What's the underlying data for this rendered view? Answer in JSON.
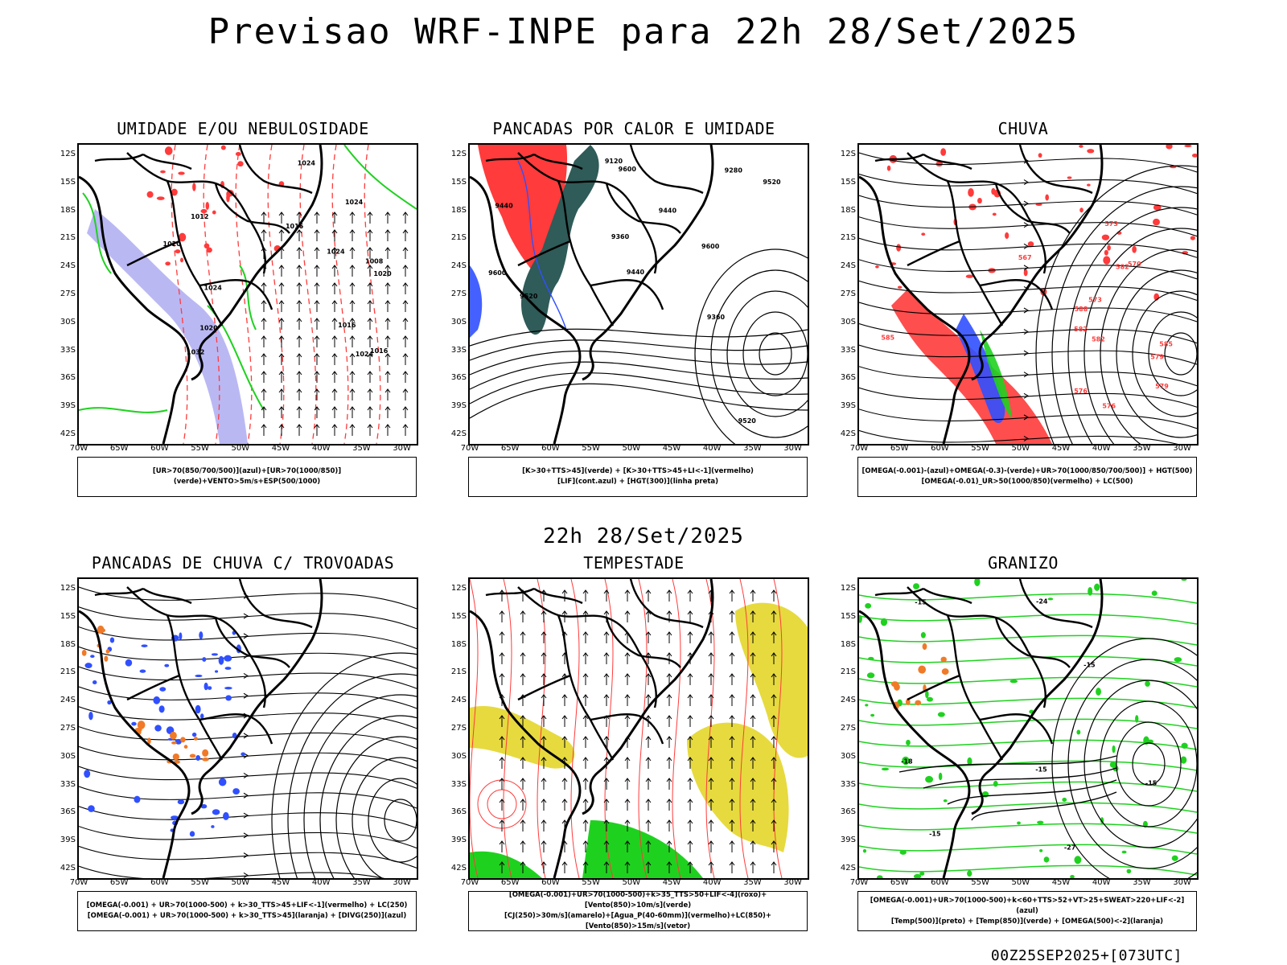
{
  "title": "Previsao WRF-INPE  para 22h 28/Set/2025",
  "middle_title": "22h 28/Set/2025",
  "footer": "00Z25SEP2025+[073UTC]",
  "axes": {
    "lat_labels": [
      "12S",
      "15S",
      "18S",
      "21S",
      "24S",
      "27S",
      "30S",
      "33S",
      "36S",
      "39S",
      "42S"
    ],
    "lon_labels": [
      "70W",
      "65W",
      "60W",
      "55W",
      "50W",
      "45W",
      "40W",
      "35W",
      "30W"
    ]
  },
  "colors": {
    "red": "#ff3b3b",
    "green": "#1fd11f",
    "blue": "#3050ff",
    "lavender": "#a9a6f0",
    "teal": "#2f5b58",
    "yellow": "#e3d62a",
    "orange": "#f07a28"
  },
  "panels": [
    {
      "id": "umidade",
      "title": "UMIDADE E/OU NEBULOSIDADE",
      "legend": [
        "[UR>70(850/700/500)](azul)+[UR>70(1000/850)](verde)+VENTO>5m/s+ESP(500/1000)"
      ],
      "contour_labels": [
        "1012",
        "1008",
        "1016",
        "1020",
        "1024",
        "1016",
        "1020",
        "1024",
        "1024",
        "1024",
        "1020",
        "1016",
        "1024",
        "1032"
      ]
    },
    {
      "id": "pancadas-calor",
      "title": "PANCADAS POR CALOR E UMIDADE",
      "legend": [
        "[K>30+TTS>45](verde) + [K>30+TTS>45+LI<-1](vermelho)",
        "[LIF](cont.azul) + [HGT(300)](linha preta)"
      ],
      "contour_labels": [
        "9600",
        "9600",
        "9600",
        "9520",
        "9440",
        "9520",
        "9520",
        "9440",
        "9360",
        "9280",
        "9440",
        "9360",
        "9120"
      ]
    },
    {
      "id": "chuva",
      "title": "CHUVA",
      "legend": [
        "[OMEGA(-0.001)-(azul)+OMEGA(-0.3)-(verde)+UR>70(1000/850/700/500)] + HGT(500)",
        "[OMEGA(-0.01)_UR>50(1000/850)(vermelho) + LC(500)"
      ],
      "contour_labels": [
        "582",
        "585",
        "582",
        "579",
        "576",
        "573",
        "570",
        "567",
        "579",
        "576",
        "573",
        "588",
        "585",
        "582"
      ]
    },
    {
      "id": "trovoadas",
      "title": "PANCADAS DE CHUVA C/ TROVOADAS",
      "legend": [
        "[OMEGA(-0.001) + UR>70(1000-500) + k>30_TTS>45+LIF<-1](vermelho) + LC(250)",
        "[OMEGA(-0.001) + UR>70(1000-500) + k>30_TTS>45](laranja) + [DIVG(250)](azul)"
      ],
      "contour_labels": []
    },
    {
      "id": "tempestade",
      "title": "TEMPESTADE",
      "legend": [
        "[OMEGA(-0.001)+UR>70(1000-500)+k>35_TTS>50+LIF<-4](roxo)+[Vento(850)>10m/s](verde)",
        "[CJ(250)>30m/s](amarelo)+[Agua_P(40-60mm)](vermelho)+LC(850)+[Vento(850)>15m/s](vetor)"
      ],
      "contour_labels": []
    },
    {
      "id": "granizo",
      "title": "GRANIZO",
      "legend": [
        "[OMEGA(-0.001)+UR>70(1000-500)+k<60+TTS>52+VT>25+SWEAT>220+LIF<-2](azul)",
        "[Temp(500)](preto) + [Temp(850)](verde) + [OMEGA(500)<-2](laranja)"
      ],
      "contour_labels": [
        "-15",
        "-15",
        "-18",
        "-15",
        "-27",
        "-24",
        "-15",
        "-15"
      ]
    }
  ]
}
